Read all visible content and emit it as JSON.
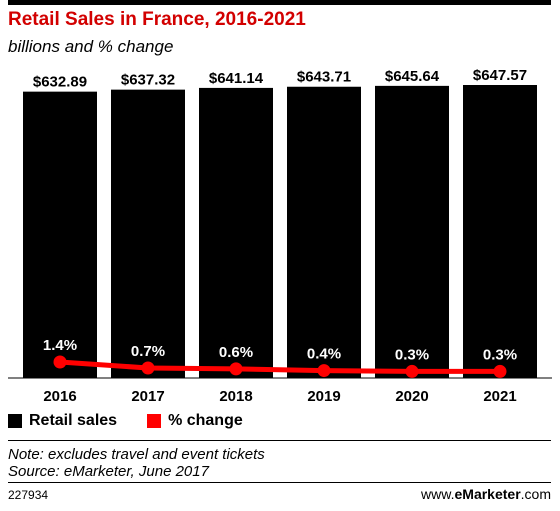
{
  "header": {
    "title": "Retail Sales in France, 2016-2021",
    "subtitle": "billions and % change"
  },
  "chart_data": {
    "type": "bar",
    "categories": [
      "2016",
      "2017",
      "2018",
      "2019",
      "2020",
      "2021"
    ],
    "series": [
      {
        "name": "Retail sales",
        "type": "bar",
        "values": [
          632.89,
          637.32,
          641.14,
          643.71,
          645.64,
          647.57
        ],
        "labels": [
          "$632.89",
          "$637.32",
          "$641.14",
          "$643.71",
          "$645.64",
          "$647.57"
        ],
        "color": "#000000"
      },
      {
        "name": "% change",
        "type": "line",
        "values": [
          1.4,
          0.7,
          0.6,
          0.4,
          0.3,
          0.3
        ],
        "labels": [
          "1.4%",
          "0.7%",
          "0.6%",
          "0.4%",
          "0.3%",
          "0.3%"
        ],
        "color": "#ff0000"
      }
    ],
    "legend_position": "bottom-left"
  },
  "legend": {
    "items": [
      {
        "label": "Retail sales",
        "color": "#000000"
      },
      {
        "label": "% change",
        "color": "#ff0000"
      }
    ]
  },
  "footer": {
    "note": "Note: excludes travel and event tickets",
    "source": "Source: eMarketer, June 2017",
    "chart_id": "227934",
    "brand_prefix": "www.",
    "brand_bold": "eMarketer",
    "brand_suffix": ".com"
  }
}
